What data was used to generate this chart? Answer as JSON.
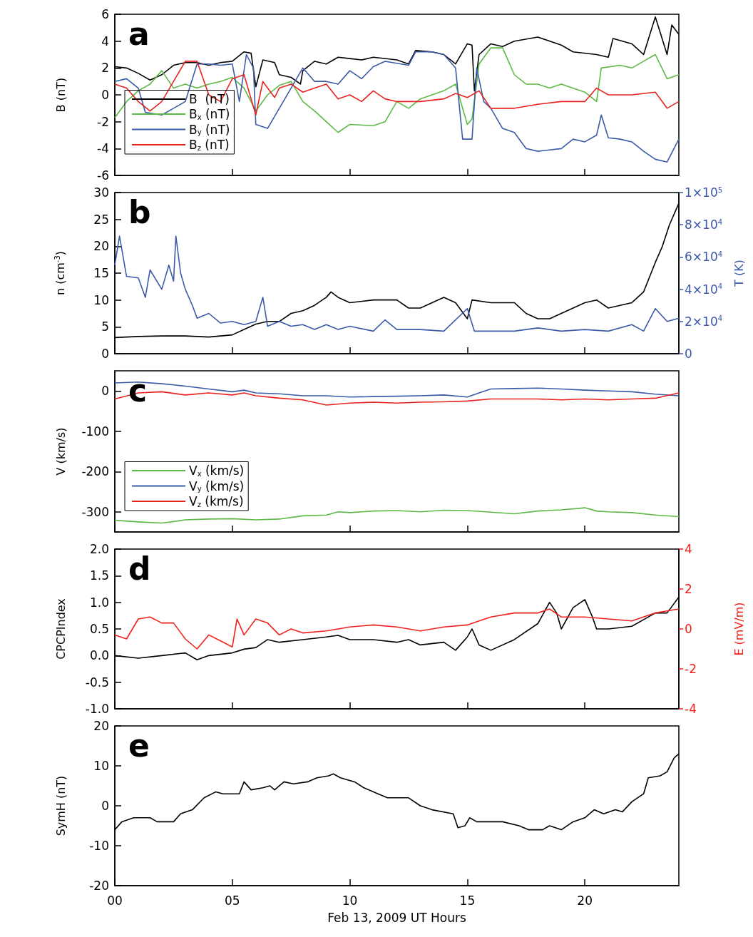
{
  "chart_data": [
    {
      "type": "line",
      "title": "a",
      "ylabel": "B (nT)",
      "xlim": [
        0,
        24
      ],
      "xticks": [
        {
          "value": 0,
          "label": null
        },
        {
          "value": 5,
          "label": null
        },
        {
          "value": 10,
          "label": null
        },
        {
          "value": 15,
          "label": null
        },
        {
          "value": 20,
          "label": null
        }
      ],
      "ylim": [
        -6,
        6
      ],
      "yticks": [
        -6,
        -4,
        -2,
        0,
        2,
        4,
        6
      ],
      "tick_labels": "y",
      "legend": "bottom left",
      "series": [
        {
          "name": "B  (nT)",
          "color": "#000000",
          "x": [
            0,
            0.5,
            1,
            1.5,
            2,
            2.5,
            3,
            3.5,
            4,
            4.5,
            5,
            5.5,
            5.8,
            6,
            6.3,
            6.8,
            7,
            7.5,
            7.9,
            8,
            8.5,
            9,
            9.5,
            10,
            10.5,
            11,
            12,
            12.5,
            12.8,
            13.5,
            14,
            14.5,
            15,
            15.2,
            15.3,
            15.5,
            16,
            16.5,
            17,
            18,
            19,
            19.5,
            20.5,
            21,
            21.2,
            22,
            22.5,
            23,
            23.5,
            23.7,
            24
          ],
          "values": [
            2.1,
            2.0,
            1.6,
            1.1,
            1.5,
            2.2,
            2.4,
            2.4,
            2.2,
            2.4,
            2.5,
            3.2,
            3.1,
            0.6,
            2.6,
            2.4,
            1.5,
            1.3,
            0.8,
            1.8,
            2.5,
            2.3,
            2.8,
            2.7,
            2.6,
            2.8,
            2.6,
            2.3,
            3.3,
            3.2,
            3.0,
            2.3,
            3.8,
            3.7,
            0.3,
            3.0,
            3.8,
            3.6,
            4.0,
            4.3,
            3.7,
            3.2,
            3.0,
            2.8,
            4.2,
            3.8,
            3.0,
            5.8,
            3.0,
            5.2,
            4.5
          ]
        },
        {
          "name": "B$_{x}$ (nT)",
          "color": "#5cb946",
          "x": [
            0,
            0.5,
            1,
            1.5,
            2,
            2.5,
            3,
            3.5,
            4,
            4.5,
            5,
            5.5,
            6,
            6.5,
            7,
            7.5,
            8,
            8.5,
            9,
            9.5,
            10,
            11,
            11.5,
            12,
            12.5,
            13,
            14,
            14.5,
            15,
            15.2,
            15.5,
            16,
            16.5,
            17,
            17.5,
            18,
            18.5,
            19,
            20,
            20.5,
            20.7,
            21.5,
            22,
            22.5,
            23,
            23.5,
            24
          ],
          "values": [
            -1.7,
            -0.5,
            0.3,
            0.8,
            1.8,
            0.5,
            0.8,
            0.5,
            0.8,
            1.0,
            1.3,
            0.5,
            -1.2,
            0,
            0.7,
            1.0,
            -0.5,
            -1.2,
            -2.0,
            -2.8,
            -2.2,
            -2.3,
            -2.0,
            -0.5,
            -1.0,
            -0.3,
            0.3,
            0.8,
            -2.2,
            -1.8,
            2.3,
            3.5,
            3.5,
            1.5,
            0.8,
            0.8,
            0.5,
            0.8,
            0.2,
            -0.5,
            2.0,
            2.2,
            2.0,
            2.5,
            3.0,
            1.2,
            1.5
          ]
        },
        {
          "name": "B$_{y}$ (nT)",
          "color": "#3a5ba8",
          "x": [
            0,
            0.5,
            1,
            1.3,
            2,
            2.5,
            3,
            3.5,
            4,
            4.5,
            5,
            5.3,
            5.6,
            5.9,
            6,
            6.5,
            7,
            7.5,
            8,
            8.5,
            9,
            9.5,
            10,
            10.5,
            11,
            11.5,
            12.5,
            12.8,
            13.5,
            14,
            14.5,
            14.8,
            15.2,
            15.4,
            15.7,
            16,
            16.5,
            17,
            17.5,
            18,
            19,
            19.5,
            20,
            20.5,
            20.7,
            21,
            21.5,
            22,
            22.5,
            23,
            23.5,
            24
          ],
          "values": [
            1.0,
            1.2,
            0.5,
            -1.3,
            -1.5,
            -1.0,
            -0.5,
            2.3,
            2.3,
            2.2,
            2.3,
            -0.5,
            3.0,
            2.0,
            -2.2,
            -2.5,
            -1.0,
            0.5,
            2.0,
            1.0,
            1.0,
            0.8,
            1.8,
            1.2,
            2.1,
            2.5,
            2.2,
            3.2,
            3.2,
            3.0,
            2.0,
            -3.3,
            -3.3,
            2.0,
            -0.5,
            -1.0,
            -2.5,
            -2.8,
            -4.0,
            -4.2,
            -4.0,
            -3.3,
            -3.5,
            -3.0,
            -1.5,
            -3.2,
            -3.3,
            -3.5,
            -4.2,
            -4.8,
            -5.0,
            -3.3
          ]
        },
        {
          "name": "B$_{z}$ (nT)",
          "color": "#e8231f",
          "x": [
            0,
            0.5,
            1,
            1.5,
            2,
            2.5,
            3,
            3.5,
            4,
            4.5,
            5,
            5.5,
            6,
            6.3,
            6.8,
            7,
            7.5,
            8,
            8.5,
            9,
            9.5,
            10,
            10.5,
            11,
            11.5,
            12,
            13,
            14,
            14.5,
            15,
            15.5,
            16,
            17,
            18,
            19,
            20,
            20.5,
            21,
            22,
            23,
            23.5,
            24
          ],
          "values": [
            0.8,
            0.5,
            -0.5,
            -1.2,
            -0.5,
            1.0,
            2.5,
            2.5,
            0.0,
            -0.5,
            1.2,
            1.5,
            -1.5,
            1.0,
            -0.2,
            0.5,
            0.8,
            0.2,
            0.5,
            0.8,
            -0.3,
            0,
            -0.5,
            0.3,
            -0.3,
            -0.5,
            -0.5,
            -0.3,
            0.1,
            -0.2,
            0.3,
            -1.0,
            -1.0,
            -0.7,
            -0.5,
            -0.5,
            0.5,
            0.0,
            0.0,
            0.2,
            -1.0,
            -0.5
          ]
        }
      ]
    },
    {
      "type": "line",
      "title": "b",
      "ylabel": "n (cm$^{-3}$)",
      "y2label": "T (K)",
      "xlim": [
        0,
        24
      ],
      "xticks": [
        {
          "value": 0,
          "label": null
        },
        {
          "value": 5,
          "label": null
        },
        {
          "value": 10,
          "label": null
        },
        {
          "value": 15,
          "label": null
        },
        {
          "value": 20,
          "label": null
        }
      ],
      "ylim": [
        0,
        30
      ],
      "yticks": [
        0,
        5,
        10,
        15,
        20,
        25,
        30
      ],
      "y2lim": [
        0,
        100000
      ],
      "y2ticks": [
        0,
        {
          "value": 20000,
          "label": "2×10$^{4}$"
        },
        {
          "value": 40000,
          "label": "4×10$^{4}$"
        },
        {
          "value": 60000,
          "label": "6×10$^{4}$"
        },
        {
          "value": 80000,
          "label": "8×10$^{4}$"
        },
        {
          "value": 100000,
          "label": "1×10$^{5}$"
        }
      ],
      "tick_labels": "y",
      "series": [
        {
          "color": "#000000",
          "x": [
            0,
            1,
            2,
            3,
            4,
            5,
            5.5,
            6,
            6.5,
            7,
            7.5,
            8,
            8.5,
            9,
            9.2,
            9.5,
            10,
            11,
            12,
            12.5,
            13,
            14,
            14.5,
            15,
            15.2,
            16,
            17,
            17.5,
            18,
            18.5,
            19,
            20,
            20.5,
            21,
            21.5,
            22,
            22.5,
            23,
            23.3,
            23.6,
            24
          ],
          "values": [
            3.0,
            3.2,
            3.3,
            3.3,
            3.1,
            3.5,
            4.5,
            5.5,
            6.0,
            6.0,
            7.5,
            8.0,
            9.0,
            10.5,
            11.5,
            10.5,
            9.5,
            10.0,
            10.0,
            8.5,
            8.5,
            10.5,
            9.5,
            6.5,
            10.0,
            9.5,
            9.5,
            7.5,
            6.5,
            6.5,
            7.5,
            9.5,
            10.0,
            8.5,
            9.0,
            9.5,
            11.5,
            17,
            20,
            24,
            28
          ]
        },
        {
          "color": "#3d5aa8",
          "axis": "y2",
          "x": [
            0,
            0.2,
            0.5,
            1,
            1.3,
            1.5,
            2,
            2.3,
            2.5,
            2.6,
            2.8,
            3,
            3.3,
            3.5,
            4,
            4.5,
            5,
            5.5,
            6,
            6.3,
            6.5,
            7,
            7.5,
            8,
            8.5,
            9,
            9.5,
            10,
            11,
            11.5,
            12,
            13,
            14,
            15,
            15.3,
            16,
            17,
            18,
            19,
            20,
            21,
            22,
            22.5,
            23,
            23.5,
            24
          ],
          "values": [
            55000,
            73000,
            48000,
            47000,
            35000,
            52000,
            40000,
            55000,
            45000,
            73000,
            50000,
            40000,
            30000,
            22000,
            25000,
            19000,
            20000,
            18000,
            20000,
            35000,
            17000,
            20000,
            17000,
            18000,
            15000,
            18000,
            15000,
            17000,
            14000,
            21000,
            15000,
            15000,
            14000,
            28000,
            14000,
            14000,
            14000,
            16000,
            14000,
            15000,
            14000,
            18000,
            14000,
            28000,
            20000,
            22000
          ]
        }
      ]
    },
    {
      "type": "line",
      "title": "c",
      "ylabel": "V (km/s)",
      "xlim": [
        0,
        24
      ],
      "xticks": [
        {
          "value": 0,
          "label": null
        },
        {
          "value": 5,
          "label": null
        },
        {
          "value": 10,
          "label": null
        },
        {
          "value": 15,
          "label": null
        },
        {
          "value": 20,
          "label": null
        }
      ],
      "ylim": [
        -350,
        50
      ],
      "yticks": [
        -300,
        -200,
        -100,
        0
      ],
      "tick_labels": "y",
      "legend": "bottom left",
      "series": [
        {
          "name": "V$_{x}$ (km/s)",
          "color": "#5cb946",
          "x": [
            0,
            1,
            2,
            3,
            4,
            5,
            6,
            7,
            8,
            9,
            9.5,
            10,
            11,
            12,
            13,
            14,
            15,
            16,
            17,
            18,
            19,
            20,
            20.5,
            21,
            22,
            23,
            24
          ],
          "values": [
            -321,
            -325,
            -328,
            -320,
            -318,
            -317,
            -320,
            -318,
            -310,
            -308,
            -300,
            -302,
            -298,
            -297,
            -300,
            -296,
            -297,
            -301,
            -305,
            -298,
            -295,
            -290,
            -298,
            -300,
            -302,
            -308,
            -312
          ]
        },
        {
          "name": "V$_{y}$ (km/s)",
          "color": "#3a5ba8",
          "x": [
            0,
            1,
            2,
            2.5,
            3,
            4,
            5,
            5.5,
            6,
            7,
            8,
            9,
            10,
            11,
            12,
            13,
            14,
            15,
            15.5,
            16,
            17,
            18,
            19,
            20,
            21,
            22,
            23,
            24
          ],
          "values": [
            20,
            22,
            18,
            15,
            12,
            5,
            -2,
            2,
            -5,
            -7,
            -12,
            -12,
            -15,
            -14,
            -13,
            -12,
            -10,
            -15,
            -5,
            5,
            6,
            7,
            5,
            2,
            0,
            -2,
            -8,
            -12
          ]
        },
        {
          "name": "V$_{z}$ (km/s)",
          "color": "#e8231f",
          "x": [
            0,
            1,
            2,
            3,
            4,
            5,
            5.5,
            6,
            7,
            8,
            9,
            10,
            11,
            12,
            13,
            14,
            15,
            16,
            17,
            18,
            19,
            20,
            21,
            22,
            23,
            24
          ],
          "values": [
            -20,
            -5,
            -2,
            -10,
            -5,
            -10,
            -5,
            -12,
            -18,
            -22,
            -35,
            -30,
            -28,
            -30,
            -28,
            -27,
            -25,
            -20,
            -20,
            -20,
            -22,
            -20,
            -22,
            -20,
            -18,
            -5
          ]
        }
      ]
    },
    {
      "type": "line",
      "title": "d",
      "ylabel": "CPCPIndex",
      "y2label": "E (mV/m)",
      "xlim": [
        0,
        24
      ],
      "xticks": [
        {
          "value": 0,
          "label": null
        },
        {
          "value": 5,
          "label": null
        },
        {
          "value": 10,
          "label": null
        },
        {
          "value": 15,
          "label": null
        },
        {
          "value": 20,
          "label": null
        }
      ],
      "ylim": [
        -1,
        2
      ],
      "yticks": [
        {
          "value": -1,
          "label": "-1.0"
        },
        {
          "value": -0.5,
          "label": "-0.5"
        },
        {
          "value": 0,
          "label": "0.0"
        },
        {
          "value": 0.5,
          "label": "0.5"
        },
        {
          "value": 1,
          "label": "1.0"
        },
        {
          "value": 1.5,
          "label": "1.5"
        },
        {
          "value": 2,
          "label": "2.0"
        }
      ],
      "y2lim": [
        -4,
        4
      ],
      "y2ticks": [
        -4,
        -2,
        0,
        2,
        4
      ],
      "tick_labels": "y",
      "series": [
        {
          "color": "#000000",
          "x": [
            0,
            1,
            2,
            3,
            3.5,
            4,
            5,
            5.5,
            6,
            6.5,
            7,
            8,
            9,
            9.5,
            10,
            11,
            12,
            12.5,
            13,
            14,
            14.5,
            15,
            15.2,
            15.5,
            16,
            17,
            18,
            18.5,
            18.8,
            19,
            19.5,
            20,
            20.3,
            20.5,
            21,
            22,
            23,
            23.5,
            24
          ],
          "values": [
            0.0,
            -0.05,
            0.0,
            0.05,
            -0.08,
            0.0,
            0.05,
            0.12,
            0.15,
            0.3,
            0.25,
            0.3,
            0.35,
            0.38,
            0.3,
            0.3,
            0.25,
            0.3,
            0.2,
            0.25,
            0.1,
            0.35,
            0.5,
            0.2,
            0.1,
            0.3,
            0.6,
            1.0,
            0.8,
            0.5,
            0.9,
            1.05,
            0.75,
            0.5,
            0.5,
            0.55,
            0.8,
            0.8,
            1.1
          ]
        },
        {
          "color": "#f0211c",
          "axis": "y2",
          "x": [
            0,
            0.5,
            1,
            1.5,
            2,
            2.5,
            3,
            3.5,
            4,
            4.5,
            5,
            5.2,
            5.5,
            6,
            6.5,
            7,
            7.5,
            8,
            9,
            10,
            11,
            12,
            13,
            14,
            15,
            15.5,
            16,
            17,
            18,
            18.5,
            19,
            20,
            21,
            22,
            23,
            23.5,
            24
          ],
          "values": [
            -0.3,
            -0.5,
            0.5,
            0.6,
            0.3,
            0.3,
            -0.5,
            -1.0,
            -0.3,
            -0.6,
            -0.9,
            0.5,
            -0.3,
            0.5,
            0.3,
            -0.3,
            0,
            -0.2,
            -0.1,
            0.1,
            0.2,
            0.1,
            -0.1,
            0.1,
            0.2,
            0.4,
            0.6,
            0.8,
            0.8,
            1.0,
            0.6,
            0.6,
            0.5,
            0.4,
            0.8,
            0.9,
            1.0
          ]
        }
      ]
    },
    {
      "type": "line",
      "title": "e",
      "ylabel": "SymH (nT)",
      "xlabel": "Feb 13, 2009 UT Hours",
      "xlim": [
        0,
        24
      ],
      "xticks": [
        {
          "value": 0,
          "label": "00"
        },
        {
          "value": 5,
          "label": "05"
        },
        {
          "value": 10,
          "label": "10"
        },
        {
          "value": 15,
          "label": "15"
        },
        {
          "value": 20,
          "label": "20"
        }
      ],
      "ylim": [
        -20,
        20
      ],
      "yticks": [
        -20,
        -10,
        0,
        10,
        20
      ],
      "series": [
        {
          "color": "#000000",
          "x": [
            0,
            0.3,
            0.8,
            1.5,
            1.8,
            2.5,
            2.8,
            3.3,
            3.8,
            4.3,
            4.6,
            5.3,
            5.5,
            5.8,
            6.3,
            6.6,
            6.8,
            7.2,
            7.6,
            8.2,
            8.6,
            9.1,
            9.3,
            9.6,
            10.2,
            10.6,
            11.2,
            11.6,
            12.5,
            13,
            13.5,
            14.4,
            14.6,
            14.9,
            15.1,
            15.4,
            16.5,
            17.2,
            17.6,
            18.2,
            18.5,
            19,
            19.5,
            20,
            20.4,
            20.8,
            21.3,
            21.6,
            22,
            22.5,
            22.7,
            23.2,
            23.5,
            23.8,
            24
          ],
          "values": [
            -6,
            -4,
            -3,
            -3,
            -4,
            -4,
            -2,
            -1,
            2,
            3.5,
            3,
            3,
            6,
            4,
            4.5,
            5,
            4,
            6,
            5.5,
            6,
            7,
            7.5,
            8,
            7,
            6,
            4.5,
            3,
            2,
            2,
            0,
            -1,
            -2,
            -5.5,
            -5,
            -3,
            -4,
            -4,
            -5,
            -6,
            -6,
            -5,
            -6,
            -4,
            -3,
            -1,
            -2,
            -1,
            -1.5,
            1,
            3,
            7,
            7.5,
            8.5,
            12,
            13
          ]
        }
      ]
    }
  ]
}
